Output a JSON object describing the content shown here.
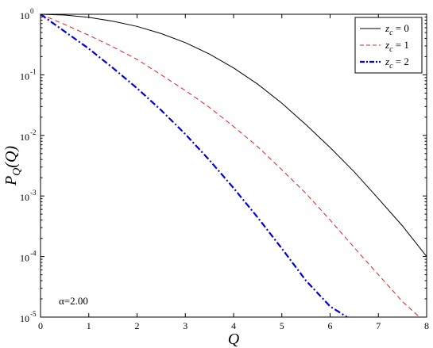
{
  "chart_data": {
    "type": "line",
    "title": "",
    "xlabel": "Q",
    "ylabel": "P_Q(Q)",
    "xlim": [
      0,
      8
    ],
    "ylim": [
      1e-05,
      1
    ],
    "yscale": "log",
    "grid": false,
    "legend_position": "top-right",
    "x_ticks": [
      "0",
      "1",
      "2",
      "3",
      "4",
      "5",
      "6",
      "7",
      "8"
    ],
    "y_ticks": [
      {
        "value": 1,
        "mantissa": "10",
        "exponent": "0"
      },
      {
        "value": 0.1,
        "mantissa": "10",
        "exponent": "-1"
      },
      {
        "value": 0.01,
        "mantissa": "10",
        "exponent": "-2"
      },
      {
        "value": 0.001,
        "mantissa": "10",
        "exponent": "-3"
      },
      {
        "value": 0.0001,
        "mantissa": "10",
        "exponent": "-4"
      },
      {
        "value": 1e-05,
        "mantissa": "10",
        "exponent": "-5"
      }
    ],
    "annotation": "α=2.00",
    "series": [
      {
        "name": "z_c = 0",
        "color": "#000000",
        "dash": "solid",
        "x": [
          0,
          0.5,
          1,
          1.5,
          2,
          2.5,
          3,
          3.5,
          4,
          4.5,
          5,
          5.5,
          6,
          6.5,
          7,
          7.5,
          8
        ],
        "y": [
          1.0,
          0.97,
          0.89,
          0.77,
          0.63,
          0.48,
          0.34,
          0.22,
          0.13,
          0.07,
          0.034,
          0.015,
          0.0063,
          0.0025,
          0.0009,
          0.00032,
          0.0001
        ]
      },
      {
        "name": "z_c = 1",
        "color": "#dd2222",
        "dash": "dashed",
        "x": [
          0,
          0.5,
          1,
          1.5,
          2,
          2.5,
          3,
          3.5,
          4,
          4.5,
          5,
          5.5,
          6,
          6.5,
          7,
          7.5,
          7.85
        ],
        "y": [
          1.0,
          0.68,
          0.45,
          0.29,
          0.18,
          0.1,
          0.055,
          0.029,
          0.014,
          0.0065,
          0.0027,
          0.0011,
          0.0004,
          0.00014,
          5e-05,
          1.8e-05,
          1e-05
        ]
      },
      {
        "name": "z_c = 2",
        "color": "#0000dd",
        "dash": "dashdot",
        "x": [
          0,
          0.5,
          1,
          1.5,
          2,
          2.5,
          3,
          3.5,
          4,
          4.5,
          5,
          5.5,
          6,
          6.35
        ],
        "y": [
          1.0,
          0.52,
          0.27,
          0.13,
          0.06,
          0.026,
          0.0105,
          0.0039,
          0.00135,
          0.00044,
          0.000135,
          4e-05,
          1.5e-05,
          1e-05
        ]
      }
    ],
    "legend": [
      {
        "prefix": "z",
        "sub": "c",
        "suffix": " = 0"
      },
      {
        "prefix": "z",
        "sub": "c",
        "suffix": " = 1"
      },
      {
        "prefix": "z",
        "sub": "c",
        "suffix": " = 2"
      }
    ]
  }
}
